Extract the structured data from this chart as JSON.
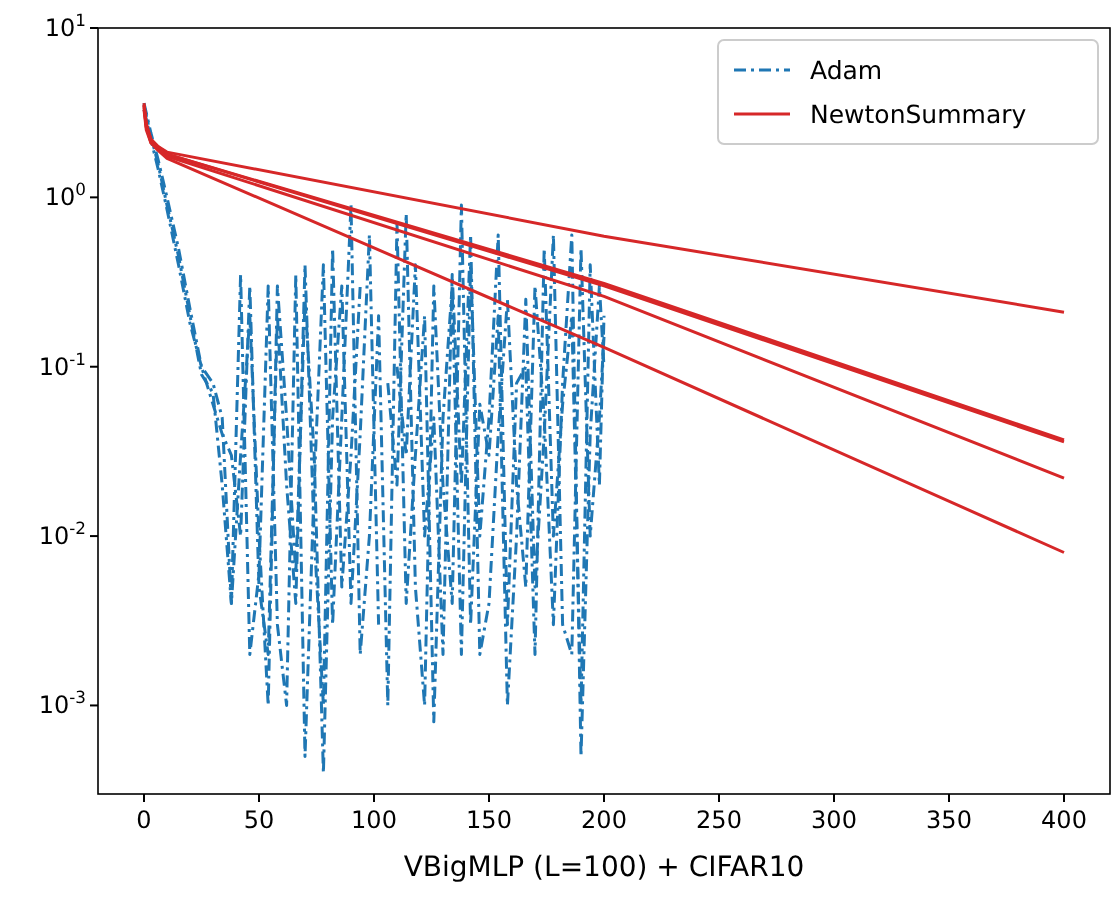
{
  "chart_data": {
    "type": "line",
    "xlabel": "VBigMLP (L=100) + CIFAR10",
    "log": "y",
    "grid": false,
    "legend": "top right",
    "marker": "none",
    "xlim": [
      -20,
      420
    ],
    "xticks": [
      0,
      50,
      100,
      150,
      200,
      250,
      300,
      350,
      400
    ],
    "ylim": [
      0.0003,
      10
    ],
    "yticks": [
      {
        "value": 10,
        "label": "10$^{1}$"
      },
      {
        "value": 1,
        "label": "10$^{0}$"
      },
      {
        "value": 0.1,
        "label": "10$^{-1}$"
      },
      {
        "value": 0.01,
        "label": "10$^{-2}$"
      },
      {
        "value": 0.001,
        "label": "10$^{-3}$"
      }
    ],
    "x": [
      0,
      3,
      6,
      10,
      15,
      20,
      25,
      30,
      34,
      38,
      42,
      46,
      50,
      54,
      58,
      62,
      66,
      70,
      74,
      78,
      82,
      86,
      90,
      94,
      98,
      102,
      106,
      110,
      114,
      118,
      122,
      126,
      130,
      134,
      138,
      142,
      146,
      150,
      154,
      158,
      162,
      166,
      170,
      174,
      178,
      182,
      186,
      190,
      194,
      198,
      200
    ],
    "series": [
      {
        "name": "Adam",
        "color": "#1f77b4",
        "line_style": "dashdot",
        "values": [
          3.5,
          2.3,
          1.6,
          0.9,
          0.45,
          0.2,
          0.09,
          0.07,
          0.02,
          0.004,
          0.35,
          0.002,
          0.006,
          0.3,
          0.003,
          0.001,
          0.35,
          0.0005,
          0.02,
          0.4,
          0.003,
          0.05,
          0.9,
          0.002,
          0.01,
          0.2,
          0.001,
          0.7,
          0.004,
          0.03,
          0.2,
          0.0008,
          0.05,
          0.3,
          0.002,
          0.4,
          0.01,
          0.05,
          0.6,
          0.003,
          0.08,
          0.1,
          0.002,
          0.5,
          0.01,
          0.06,
          0.2,
          0.001,
          0.4,
          0.02,
          0.2
        ]
      },
      {
        "color": "#1f77b4",
        "line_style": "dashdot",
        "values": [
          3.3,
          2.2,
          1.5,
          0.85,
          0.4,
          0.18,
          0.1,
          0.06,
          0.04,
          0.03,
          0.01,
          0.3,
          0.005,
          0.002,
          0.2,
          0.02,
          0.004,
          0.4,
          0.01,
          0.001,
          0.5,
          0.005,
          0.03,
          0.3,
          null,
          null,
          0.08,
          0.02,
          0.8,
          0.005,
          0.001,
          0.3,
          0.02,
          0.004,
          0.9,
          0.003,
          0.06,
          0.03,
          0.2,
          0.001,
          0.01,
          0.25,
          0.005,
          0.04,
          0.6,
          0.003,
          0.002,
          0.5,
          0.01,
          0.05,
          0.15
        ]
      },
      {
        "color": "#1f77b4",
        "line_style": "dashdot",
        "values": [
          3.6,
          2.4,
          1.7,
          1.0,
          0.5,
          0.22,
          0.1,
          0.08,
          0.05,
          0.004,
          0.03,
          0.2,
          0.01,
          0.001,
          0.3,
          0.05,
          0.006,
          0.25,
          0.03,
          0.0004,
          0.05,
          0.3,
          0.004,
          0.04,
          0.6,
          0.003,
          null,
          0.1,
          0.03,
          0.4,
          0.01,
          0.05,
          0.002,
          0.35,
          0.02,
          0.6,
          0.002,
          0.004,
          0.04,
          0.25,
          0.02,
          0.005,
          0.3,
          0.05,
          0.003,
          0.08,
          0.6,
          0.0005,
          0.04,
          0.3,
          0.1
        ]
      },
      {
        "name": "NewtonSummary",
        "color": "#d62728",
        "line_style": "solid",
        "x": [
          0,
          1,
          3,
          6,
          10,
          200,
          400
        ],
        "values": [
          3.6,
          2.7,
          2.2,
          2.0,
          1.85,
          0.59,
          0.21
        ]
      },
      {
        "color": "#d62728",
        "line_style": "solid",
        "x": [
          0,
          1,
          3,
          6,
          10,
          200,
          400
        ],
        "values": [
          3.5,
          2.7,
          2.2,
          2.0,
          1.8,
          0.31,
          0.037
        ]
      },
      {
        "color": "#d62728",
        "line_style": "solid",
        "x": [
          0,
          1,
          3,
          6,
          10,
          200,
          400
        ],
        "values": [
          3.4,
          2.6,
          2.2,
          1.95,
          1.8,
          0.3,
          0.036
        ]
      },
      {
        "color": "#d62728",
        "line_style": "solid",
        "x": [
          0,
          1,
          3,
          6,
          10,
          200,
          400
        ],
        "values": [
          3.5,
          2.6,
          2.1,
          1.95,
          1.75,
          0.26,
          0.022
        ]
      },
      {
        "color": "#d62728",
        "line_style": "solid",
        "x": [
          0,
          1,
          3,
          6,
          10,
          200,
          400
        ],
        "values": [
          3.3,
          2.5,
          2.1,
          1.9,
          1.7,
          0.13,
          0.008
        ]
      }
    ]
  }
}
